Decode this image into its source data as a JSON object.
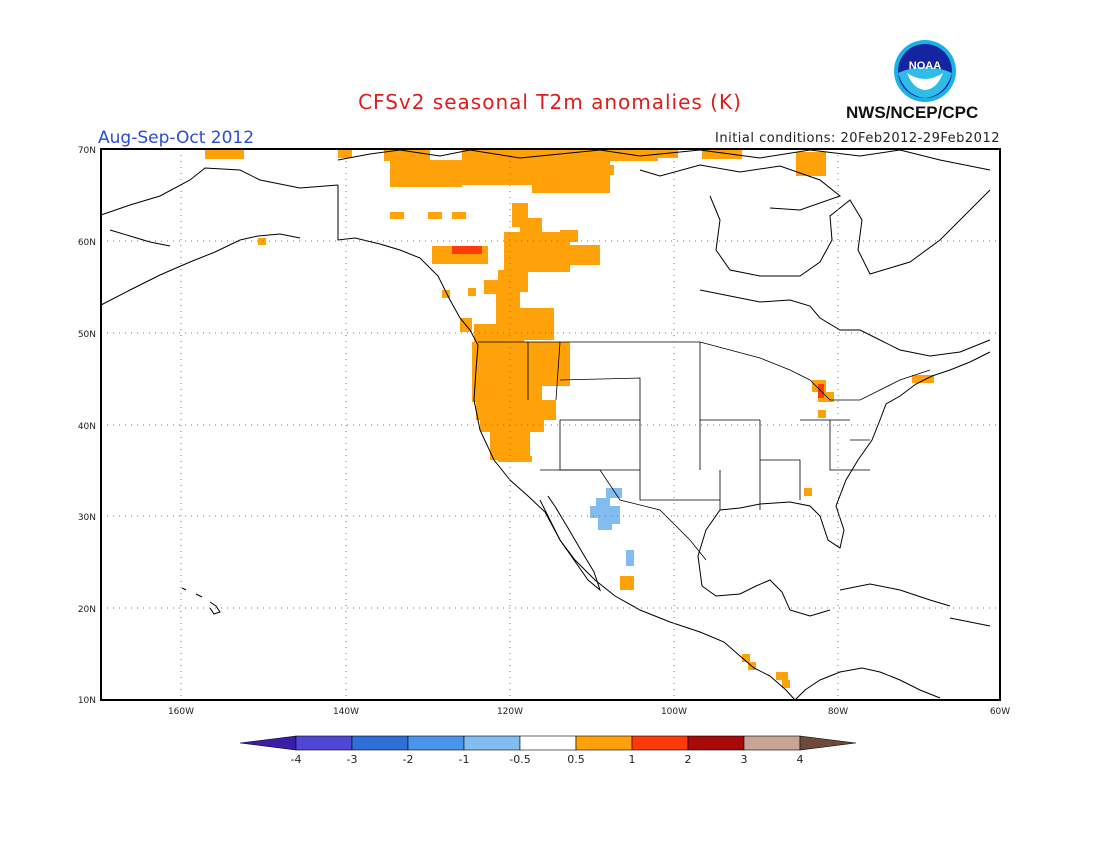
{
  "title": "CFSv2 seasonal T2m anomalies (K)",
  "period": "Aug-Sep-Oct 2012",
  "initial_conditions": "Initial conditions: 20Feb2012-29Feb2012",
  "agency": "NWS/NCEP/CPC",
  "logo_text": "NOAA",
  "map": {
    "lon_range": [
      -172,
      -60
    ],
    "lat_range": [
      10,
      70
    ],
    "lat_ticks": [
      "70N",
      "60N",
      "50N",
      "40N",
      "30N",
      "20N",
      "10N"
    ],
    "lon_ticks": [
      "160W",
      "140W",
      "120W",
      "100W",
      "80W",
      "60W"
    ],
    "grid": "dotted",
    "anomaly_regions": [
      {
        "name": "Alaska North Slope / Arctic Canada",
        "category": "0.5 to 1"
      },
      {
        "name": "Pacific Northwest / western Canada",
        "category": "0.5 to 1"
      },
      {
        "name": "Northern Rockies",
        "category": "0.5 to 1"
      },
      {
        "name": "California / Nevada",
        "category": "0.5 to 1"
      },
      {
        "name": "Yukon spot",
        "category": "1 to 2"
      },
      {
        "name": "Michigan spot",
        "category": "1 to 2"
      },
      {
        "name": "Northern Mexico / Arizona",
        "category": "-1 to -0.5"
      },
      {
        "name": "Central America spots",
        "category": "0.5 to 1"
      }
    ]
  },
  "colorbar": {
    "labels": [
      "-4",
      "-3",
      "-2",
      "-1",
      "-0.5",
      "0.5",
      "1",
      "2",
      "3",
      "4"
    ],
    "colors": [
      "#3a1ea8",
      "#5046d6",
      "#2f70d8",
      "#4a95ec",
      "#82bdf2",
      "#ffffff",
      "#ffa20a",
      "#ff3a0a",
      "#a80a0a",
      "#c9a394",
      "#6e4a3a"
    ]
  }
}
